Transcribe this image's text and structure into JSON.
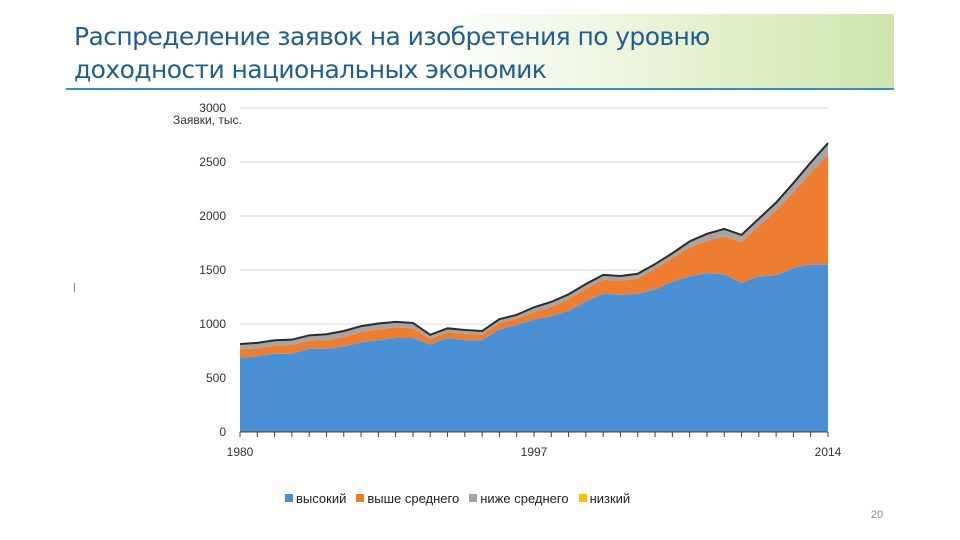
{
  "slide": {
    "title_line1": "Распределение заявок на изобретения по уровню",
    "title_line2": "доходности национальных экономик",
    "page_number": "20"
  },
  "colors": {
    "accent_rule": "#2f8fc9",
    "title_text": "#1f5f8f",
    "high": "#4b8fd4",
    "upper_middle": "#ed7d31",
    "lower_middle": "#a5a5a5",
    "low": "#ffc000"
  },
  "chart_data": {
    "type": "area",
    "stacked": true,
    "title": "",
    "unit_label": "Заявки, тыс.",
    "xlabel": "",
    "ylabel": "Заявки, тыс.",
    "ylim": [
      0,
      3000
    ],
    "y_ticks": [
      "0",
      "500",
      "1000",
      "1500",
      "2000",
      "2500",
      "3000"
    ],
    "x_tick_labels": [
      "1980",
      "1997",
      "2014"
    ],
    "grid": true,
    "legend_position": "bottom",
    "x": [
      1980,
      1981,
      1982,
      1983,
      1984,
      1985,
      1986,
      1987,
      1988,
      1989,
      1990,
      1991,
      1992,
      1993,
      1994,
      1995,
      1996,
      1997,
      1998,
      1999,
      2000,
      2001,
      2002,
      2003,
      2004,
      2005,
      2006,
      2007,
      2008,
      2009,
      2010,
      2011,
      2012,
      2013,
      2014
    ],
    "series": [
      {
        "name": "высокий",
        "color": "#4b8fd4",
        "values": [
          685,
          700,
          725,
          725,
          770,
          770,
          790,
          830,
          850,
          870,
          870,
          810,
          870,
          850,
          850,
          950,
          990,
          1040,
          1070,
          1120,
          1210,
          1280,
          1270,
          1280,
          1320,
          1390,
          1440,
          1470,
          1460,
          1380,
          1440,
          1450,
          1520,
          1550,
          1550
        ]
      },
      {
        "name": "выше среднего",
        "color": "#ed7d31",
        "values": [
          80,
          75,
          75,
          80,
          75,
          80,
          90,
          95,
          100,
          100,
          90,
          55,
          55,
          60,
          50,
          60,
          60,
          70,
          90,
          110,
          115,
          130,
          130,
          140,
          190,
          220,
          270,
          300,
          350,
          380,
          470,
          600,
          700,
          850,
          1020
        ]
      },
      {
        "name": "ниже среднего",
        "color": "#a5a5a5",
        "values": [
          45,
          45,
          45,
          45,
          45,
          50,
          50,
          50,
          50,
          45,
          45,
          30,
          30,
          30,
          30,
          30,
          30,
          40,
          40,
          40,
          40,
          40,
          40,
          40,
          40,
          40,
          50,
          60,
          65,
          60,
          60,
          70,
          80,
          90,
          100
        ]
      },
      {
        "name": "низкий",
        "color": "#ffc000",
        "values": [
          5,
          5,
          5,
          5,
          5,
          5,
          5,
          5,
          5,
          5,
          5,
          5,
          5,
          5,
          5,
          5,
          5,
          5,
          5,
          5,
          5,
          5,
          5,
          5,
          5,
          5,
          5,
          5,
          5,
          5,
          5,
          5,
          5,
          5,
          5
        ]
      }
    ]
  }
}
